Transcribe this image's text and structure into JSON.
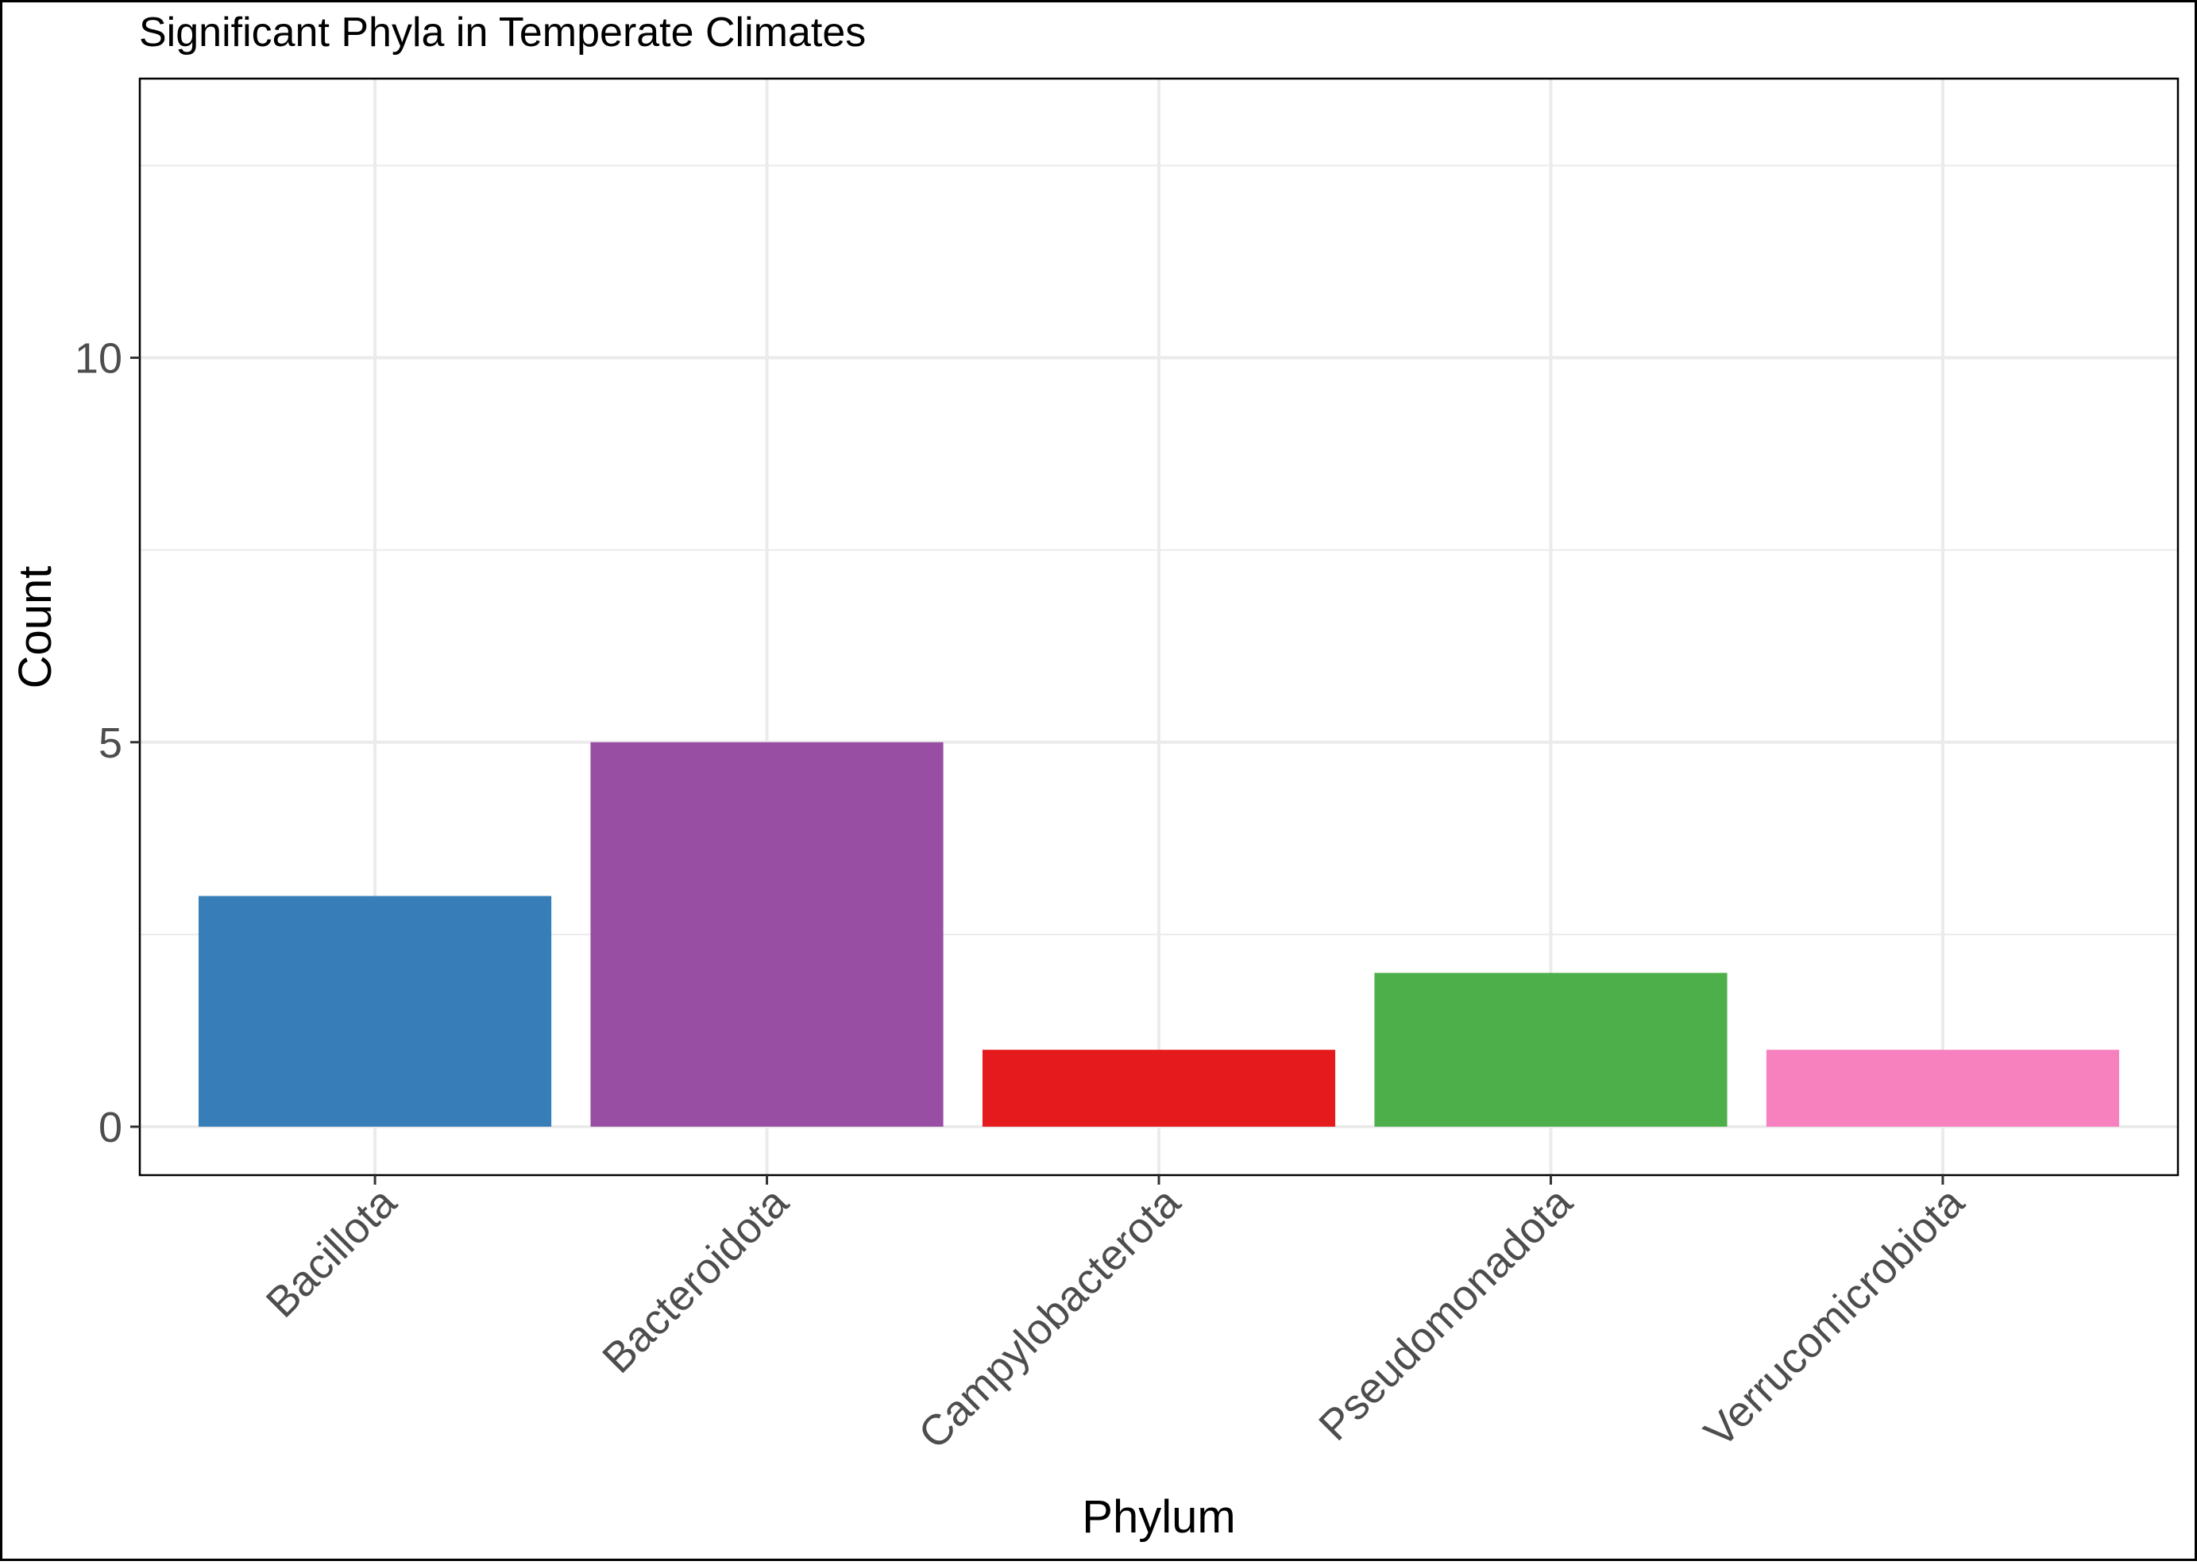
{
  "chart_data": {
    "type": "bar",
    "title": "Significant Phyla in Temperate Climates",
    "xlabel": "Phylum",
    "ylabel": "Count",
    "categories": [
      "Bacillota",
      "Bacteroidota",
      "Campylobacterota",
      "Pseudomonadota",
      "Verrucomicrobiota"
    ],
    "values": [
      3,
      5,
      1,
      2,
      1
    ],
    "colors": [
      "#377EB8",
      "#984EA3",
      "#E41A1C",
      "#4DAF4A",
      "#F781BF"
    ],
    "yticks": [
      0,
      5,
      10
    ],
    "ylim": [
      -0.63,
      13.63
    ],
    "grid": true,
    "legend": "none"
  }
}
